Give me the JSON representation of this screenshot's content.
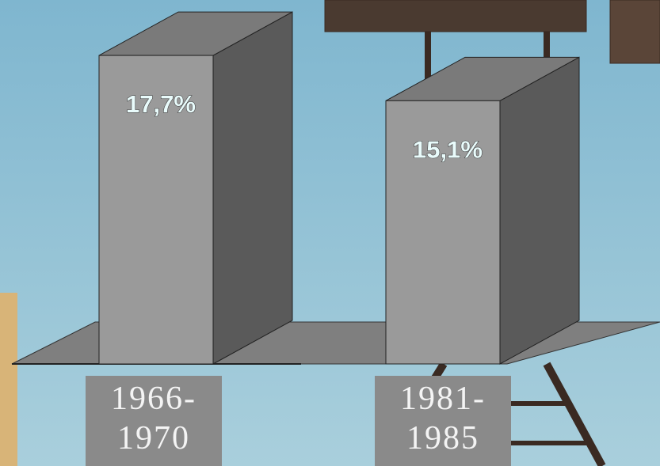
{
  "chart_data": {
    "type": "bar",
    "categories": [
      "1966-1970",
      "1981-1985"
    ],
    "values": [
      17.7,
      15.1
    ],
    "value_labels": [
      "17,7%",
      "15,1%"
    ],
    "color": "#9a9a9a"
  }
}
